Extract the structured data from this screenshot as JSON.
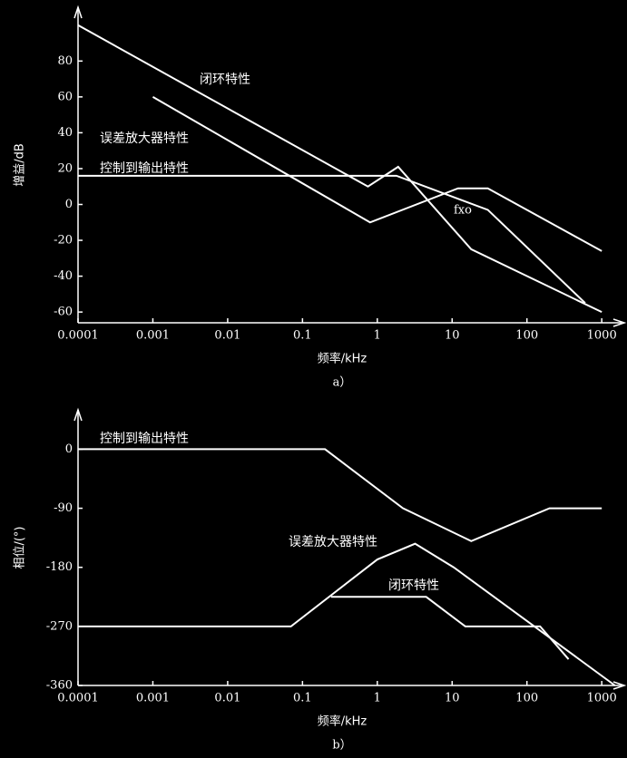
{
  "chart_data": [
    {
      "type": "line",
      "xscale": "log",
      "caption": "a）",
      "xlabel": "频率/kHz",
      "ylabel": "增益/dB",
      "xlim": [
        0.0001,
        2000
      ],
      "ylim": [
        -66,
        110
      ],
      "xticks": [
        0.0001,
        0.001,
        0.01,
        0.1,
        1,
        10,
        100,
        1000
      ],
      "yticks": [
        -60,
        -40,
        -20,
        0,
        20,
        40,
        60,
        80
      ],
      "series": [
        {
          "name": "闭环特性",
          "color": "#ffffff",
          "x": [
            0.0001,
            0.75,
            1.9,
            18,
            1000
          ],
          "values": [
            100,
            10,
            21,
            -25,
            -60
          ]
        },
        {
          "name": "误差放大器特性",
          "color": "#ffffff",
          "x": [
            0.001,
            0.8,
            12,
            30,
            1000
          ],
          "values": [
            60,
            -10,
            9,
            9,
            -26
          ]
        },
        {
          "name": "控制到输出特性",
          "color": "#ffffff",
          "x": [
            0.0001,
            1.8,
            30,
            600
          ],
          "values": [
            16,
            16,
            -3,
            -55
          ]
        }
      ],
      "annotations": [
        {
          "text": "fxo"
        }
      ]
    },
    {
      "type": "line",
      "xscale": "log",
      "caption": "b）",
      "xlabel": "频率/kHz",
      "ylabel": "相位/(°)",
      "xlim": [
        0.0001,
        2000
      ],
      "ylim": [
        -360,
        60
      ],
      "xticks": [
        0.0001,
        0.001,
        0.01,
        0.1,
        1,
        10,
        100,
        1000
      ],
      "yticks": [
        -360,
        -270,
        -180,
        -90,
        0
      ],
      "series": [
        {
          "name": "控制到输出特性",
          "color": "#ffffff",
          "x": [
            0.0001,
            0.2,
            2.2,
            18,
            200,
            1000
          ],
          "values": [
            0,
            0,
            -90,
            -140,
            -90,
            -90
          ]
        },
        {
          "name": "误差放大器特性",
          "color": "#ffffff",
          "x": [
            0.0001,
            0.07,
            1,
            3.2,
            10.5,
            1500
          ],
          "values": [
            -270,
            -270,
            -168,
            -144,
            -180,
            -360
          ]
        },
        {
          "name": "闭环特性",
          "color": "#ffffff",
          "x": [
            0.24,
            4.5,
            15,
            150,
            360
          ],
          "values": [
            -225,
            -225,
            -270,
            -270,
            -320
          ]
        }
      ]
    }
  ]
}
